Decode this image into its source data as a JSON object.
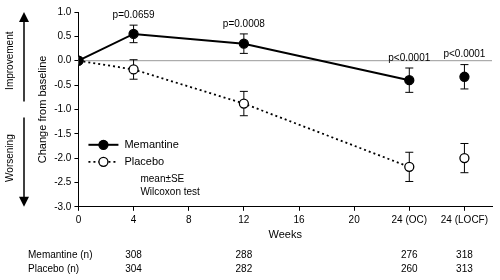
{
  "chart_data": {
    "type": "line",
    "x_label": "Weeks",
    "y_label": "Change from baseline",
    "x": [
      0,
      4,
      12,
      24,
      28
    ],
    "xlim": [
      0,
      30
    ],
    "xticks": [
      0,
      4,
      8,
      12,
      16,
      20,
      {
        "value": 24,
        "label": "24 (OC)"
      },
      {
        "value": 28,
        "label": "24 (LOCF)"
      }
    ],
    "ylim": [
      -3,
      1
    ],
    "yticks": [
      {
        "value": -3,
        "label": "-3.0"
      },
      -2.5,
      {
        "value": -2,
        "label": "-2.0"
      },
      -1.5,
      {
        "value": -1,
        "label": "-1.0"
      },
      -0.5,
      {
        "value": 0,
        "label": "0.0"
      },
      0.5,
      {
        "value": 1,
        "label": "1.0"
      }
    ],
    "reference_y": 0,
    "grid": false,
    "legend": "lower left",
    "series": [
      {
        "name": "Memantine",
        "color": "#000000",
        "marker": "filled_circle",
        "line_style": "solid",
        "values": [
          0,
          0.55,
          0.35,
          -0.4,
          -0.33
        ],
        "error": [
          null,
          0.18,
          0.2,
          0.25,
          0.25
        ]
      },
      {
        "name": "Placebo",
        "color": "#000000",
        "marker": "open_circle",
        "line_style": "dotted",
        "values": [
          0,
          -0.18,
          -0.88,
          -2.18,
          -2.0
        ],
        "error": [
          null,
          0.2,
          0.25,
          0.3,
          0.3
        ]
      }
    ],
    "annotations": [
      {
        "text": "p=0.0659",
        "x": 4
      },
      {
        "text": "p=0.0008",
        "x": 12
      },
      {
        "text": "p<0.0001",
        "x": 24
      },
      {
        "text": "p<0.0001",
        "x": 28
      }
    ],
    "notes": [
      "mean±SE",
      "Wilcoxon test"
    ],
    "direction_labels": {
      "up": "Improvement",
      "down": "Worsening"
    },
    "sample_sizes": {
      "x": [
        4,
        12,
        24,
        28
      ],
      "rows": [
        {
          "label": "Memantine (n)",
          "values": [
            308,
            288,
            276,
            318
          ]
        },
        {
          "label": "Placebo (n)",
          "values": [
            304,
            282,
            260,
            313
          ]
        }
      ]
    }
  }
}
